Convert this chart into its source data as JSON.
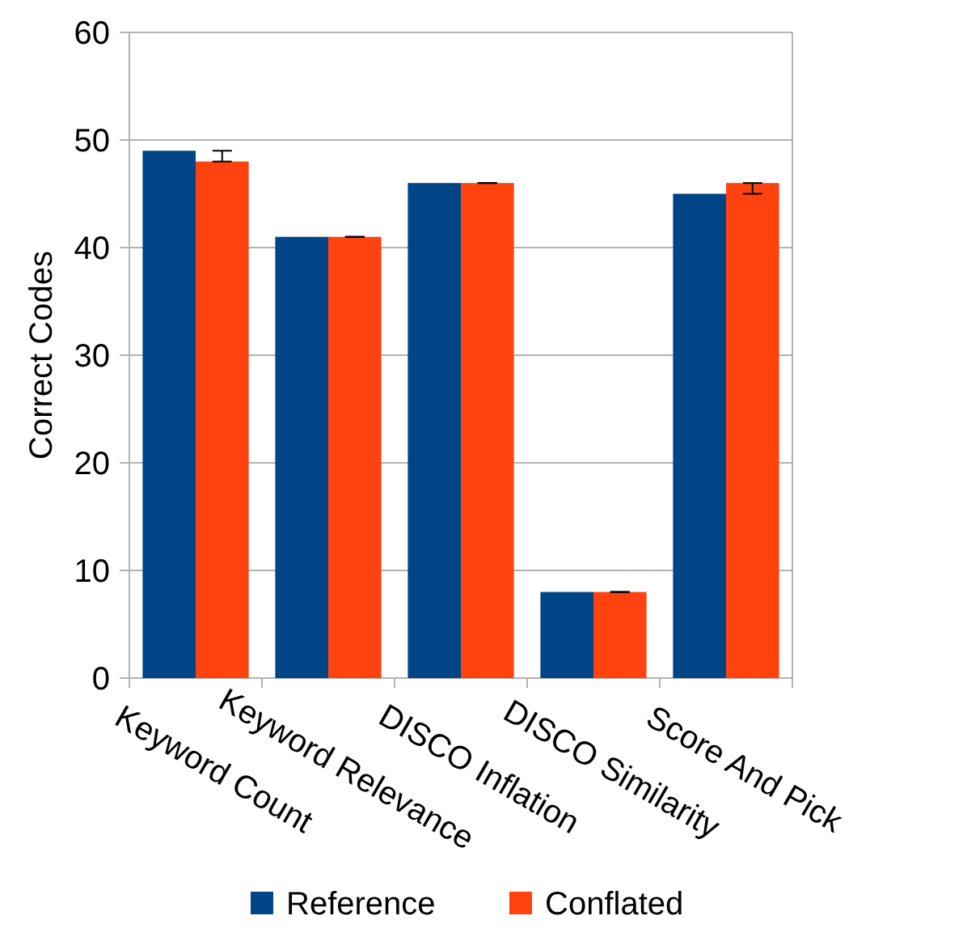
{
  "chart_data": {
    "type": "bar",
    "ylabel": "Correct Codes",
    "categories": [
      "Keyword Count",
      "Keyword Relevance",
      "DISCO Inflation",
      "DISCO Similarity",
      "Score And Pick"
    ],
    "series": [
      {
        "name": "Reference",
        "color": "#004586",
        "values": [
          49,
          41,
          46,
          8,
          45
        ]
      },
      {
        "name": "Conflated",
        "color": "#ff420e",
        "values": [
          48,
          41,
          46,
          8,
          46
        ],
        "errors": [
          [
            48,
            49
          ],
          0,
          0,
          0,
          [
            45,
            46
          ]
        ]
      }
    ],
    "ylim": [
      0,
      60
    ],
    "yticks": [
      0,
      10,
      20,
      30,
      40,
      50,
      60
    ],
    "grid": "y",
    "legend": "bottom"
  }
}
